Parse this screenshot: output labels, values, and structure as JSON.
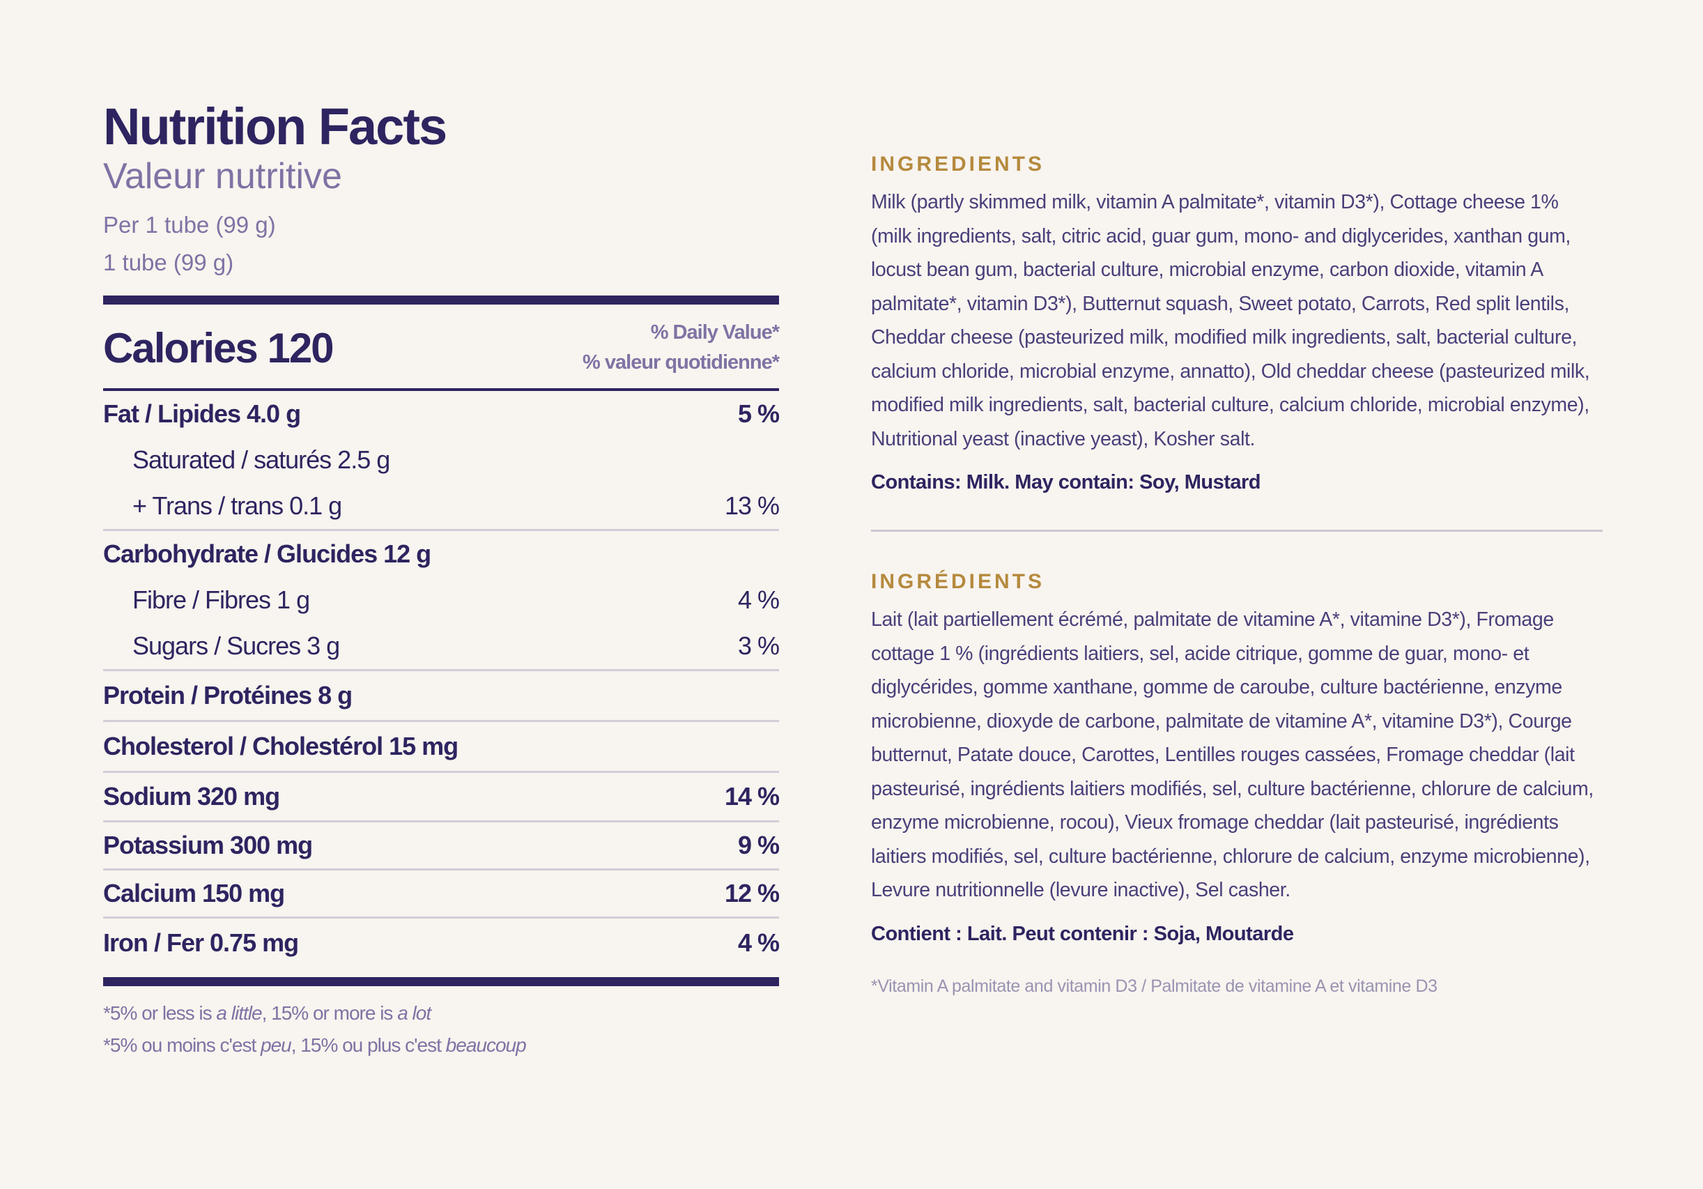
{
  "nutrition": {
    "title": "Nutrition Facts",
    "subtitle": "Valeur nutritive",
    "serving_en": "Per 1 tube (99 g)",
    "serving_fr": "1 tube (99 g)",
    "calories_label": "Calories 120",
    "dv_en": "% Daily Value*",
    "dv_fr": "% valeur quotidienne*",
    "rows": [
      {
        "label": "Fat / Lipides 4.0 g",
        "pct": "5 %"
      },
      {
        "label": "Saturated / saturés 2.5 g",
        "pct": ""
      },
      {
        "label": "+ Trans / trans 0.1 g",
        "pct": "13 %"
      },
      {
        "label": "Carbohydrate / Glucides 12 g",
        "pct": ""
      },
      {
        "label": "Fibre / Fibres 1 g",
        "pct": "4 %"
      },
      {
        "label": "Sugars / Sucres 3 g",
        "pct": "3 %"
      },
      {
        "label": "Protein / Protéines 8 g",
        "pct": ""
      },
      {
        "label": "Cholesterol / Cholestérol 15 mg",
        "pct": ""
      },
      {
        "label": "Sodium 320 mg",
        "pct": "14 %"
      },
      {
        "label": "Potassium 300 mg",
        "pct": "9 %"
      },
      {
        "label": "Calcium 150 mg",
        "pct": "12 %"
      },
      {
        "label": "Iron / Fer 0.75 mg",
        "pct": "4 %"
      }
    ],
    "footnote_en": {
      "a": "*5% or less is ",
      "b": "a little",
      "c": ", 15% or more is ",
      "d": "a lot"
    },
    "footnote_fr": {
      "a": "*5% ou moins c'est ",
      "b": "peu",
      "c": ", 15% ou plus c'est ",
      "d": "beaucoup"
    }
  },
  "ingredients_en": {
    "heading": "INGREDIENTS",
    "text": "Milk (partly skimmed milk, vitamin A palmitate*, vitamin D3*), Cottage cheese 1% (milk ingredients, salt, citric acid, guar gum, mono- and diglycerides, xanthan gum, locust bean gum, bacterial culture, microbial enzyme, carbon dioxide, vitamin A palmitate*, vitamin D3*), Butternut squash, Sweet potato, Carrots, Red split lentils, Cheddar cheese (pasteurized milk, modified milk ingredients, salt, bacterial culture, calcium chloride, microbial enzyme, annatto), Old cheddar cheese (pasteurized milk, modified milk ingredients, salt, bacterial culture, calcium chloride, microbial enzyme), Nutritional yeast (inactive yeast), Kosher salt.",
    "contains": "Contains: Milk. May contain: Soy, Mustard"
  },
  "ingredients_fr": {
    "heading": "INGRÉDIENTS",
    "text": "Lait (lait partiellement écrémé, palmitate de vitamine A*, vitamine D3*), Fromage cottage 1 % (ingrédients laitiers, sel, acide citrique, gomme de guar, mono- et diglycérides, gomme xanthane, gomme de caroube, culture bactérienne, enzyme microbienne, dioxyde de carbone, palmitate de vitamine A*, vitamine D3*), Courge butternut, Patate douce, Carottes, Lentilles rouges cassées, Fromage cheddar (lait pasteurisé, ingrédients laitiers modifiés, sel, culture bactérienne, chlorure de calcium, enzyme microbienne, rocou), Vieux fromage cheddar (lait pasteurisé, ingrédients laitiers modifiés, sel, culture bactérienne, chlorure de calcium, enzyme microbienne), Levure nutritionnelle (levure inactive), Sel casher.",
    "contains": "Contient : Lait. Peut contenir : Soja, Moutarde"
  },
  "vitamin_note": "*Vitamin A palmitate and vitamin D3 / Palmitate de vitamine A et vitamine D3"
}
